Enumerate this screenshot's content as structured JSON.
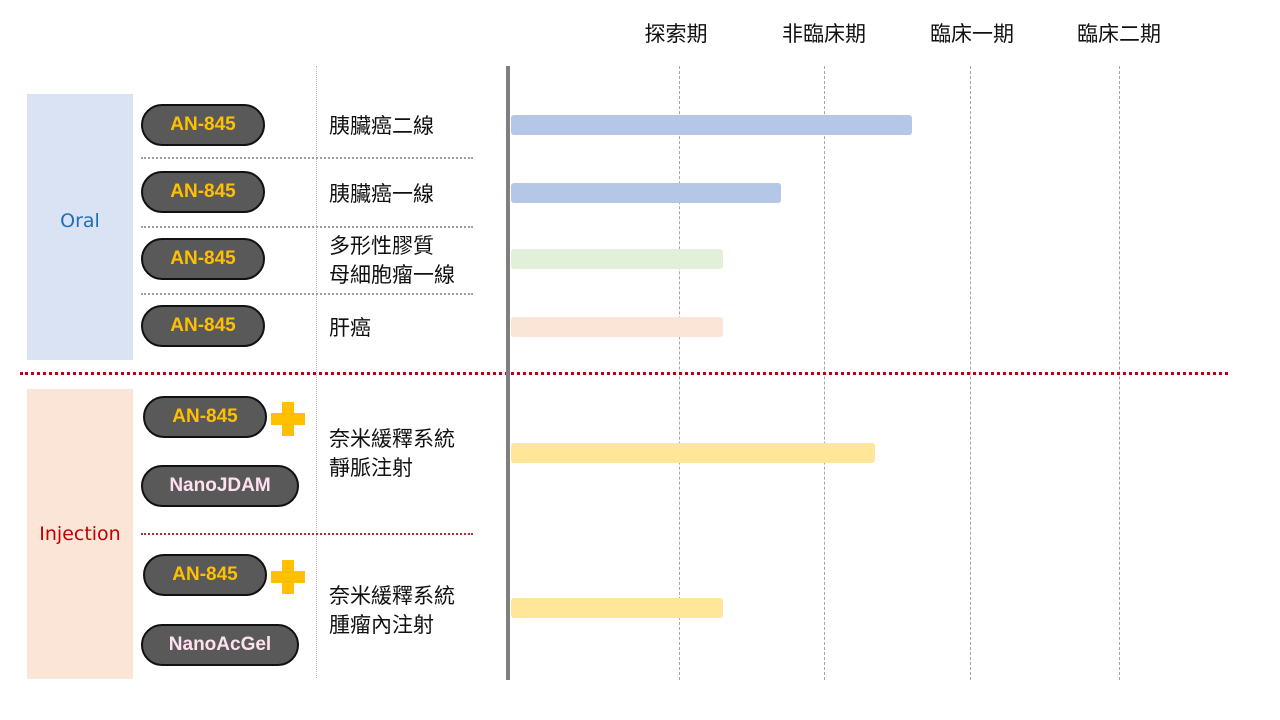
{
  "chart_data": {
    "type": "bar",
    "orientation": "horizontal",
    "phases": [
      "探索期",
      "非臨床期",
      "臨床一期",
      "臨床二期"
    ],
    "groups": [
      {
        "label": "Oral",
        "color": "#1f6fb5",
        "box_color": "#dae3f3",
        "rows": [
          {
            "drugs": [
              "AN-845"
            ],
            "indication": "胰臟癌二線",
            "progress_phases": 2.6,
            "bar_color": "#b4c7e7"
          },
          {
            "drugs": [
              "AN-845"
            ],
            "indication": "胰臟癌一線",
            "progress_phases": 1.7,
            "bar_color": "#b4c7e7"
          },
          {
            "drugs": [
              "AN-845"
            ],
            "indication": "多形性膠質\n母細胞瘤一線",
            "progress_phases": 1.3,
            "bar_color": "#e2f0d9"
          },
          {
            "drugs": [
              "AN-845"
            ],
            "indication": "肝癌",
            "progress_phases": 1.3,
            "bar_color": "#fbe5d6"
          }
        ]
      },
      {
        "label": "Injection",
        "color": "#c00000",
        "box_color": "#fbe5d6",
        "rows": [
          {
            "drugs": [
              "AN-845",
              "NanoJDAM"
            ],
            "indication": "奈米緩釋系統\n靜脈注射",
            "progress_phases": 2.35,
            "bar_color": "#ffe699"
          },
          {
            "drugs": [
              "AN-845",
              "NanoAcGel"
            ],
            "indication": "奈米緩釋系統\n腫瘤內注射",
            "progress_phases": 1.3,
            "bar_color": "#ffe699"
          }
        ]
      }
    ],
    "pill_colors": {
      "AN-845": "#ffc000",
      "partner": "#ffe0f0"
    },
    "plus_color": "#ffc000"
  }
}
